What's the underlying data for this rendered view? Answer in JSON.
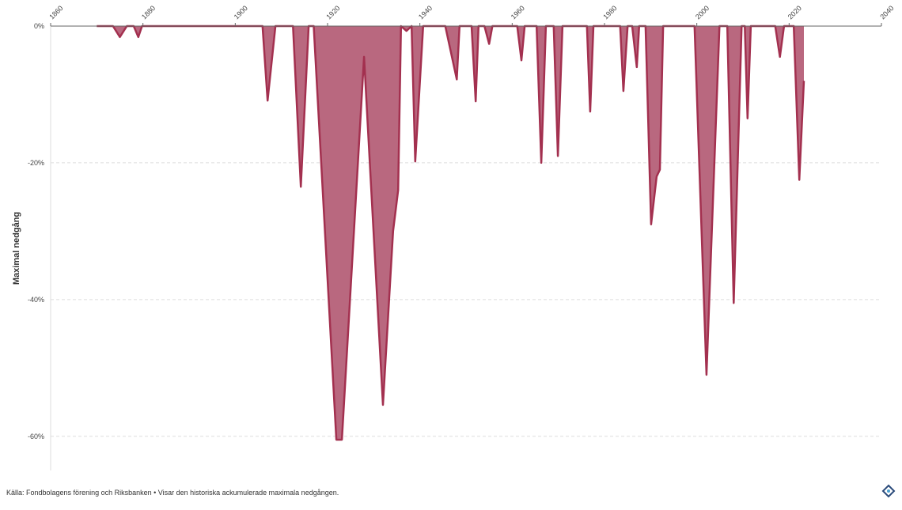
{
  "chart_data": {
    "type": "area",
    "y_label": "Maximal nedgång",
    "source": "Källa: Fondbolagens förening och Riksbanken • Visar den historiska ackumulerade maximala nedgången.",
    "x": [
      1870,
      1873.5,
      1875,
      1876.5,
      1878,
      1879,
      1879.8,
      1905.9,
      1907,
      1908.7,
      1912.5,
      1914.2,
      1915.9,
      1917,
      1921.9,
      1923.1,
      1927.9,
      1932,
      1934.2,
      1935.3,
      1935.9,
      1937.1,
      1938.2,
      1939,
      1940.7,
      1945.5,
      1948,
      1948.6,
      1951.2,
      1952.1,
      1952.7,
      1954,
      1955,
      1955.7,
      1961.1,
      1962,
      1962.7,
      1965.3,
      1966.3,
      1967.3,
      1969,
      1969.9,
      1970.9,
      1976.2,
      1976.9,
      1977.6,
      1983.4,
      1984.1,
      1985,
      1986,
      1987,
      1987.5,
      1988.9,
      1990.1,
      1991.3,
      1992,
      1992.7,
      1999.5,
      2002.1,
      2004.9,
      2006.6,
      2008,
      2009.7,
      2010.4,
      2011,
      2011.7,
      2017,
      2018,
      2018.9,
      2021,
      2022.2,
      2023.2
    ],
    "y": [
      0,
      0,
      -1.6,
      0,
      0,
      -1.6,
      0,
      0,
      -10.9,
      0,
      0,
      -23.5,
      0,
      0,
      -60.5,
      -60.5,
      -4.5,
      -55.4,
      -30,
      -24,
      0,
      -0.7,
      0,
      -19.8,
      0,
      0,
      -7.8,
      0,
      0,
      -11,
      0,
      0,
      -2.6,
      0,
      0,
      -5,
      0,
      0,
      -20,
      0,
      0,
      -19,
      0,
      0,
      -12.5,
      0,
      0,
      -9.5,
      0,
      0,
      -6,
      0,
      0,
      -29,
      -22,
      -21,
      0,
      0,
      -51,
      0,
      0,
      -40.5,
      0,
      0,
      -13.5,
      0,
      0,
      -4.5,
      0,
      0,
      -22.5,
      -8
    ],
    "color": "#a3304f",
    "fill": "#b9687f",
    "xlim": [
      1860,
      2040
    ],
    "xticks": [
      1860,
      1880,
      1900,
      1920,
      1940,
      1960,
      1980,
      2000,
      2020,
      2040
    ],
    "ylim": [
      0,
      -65
    ],
    "yticks": [
      {
        "value": 0,
        "label": "0%"
      },
      {
        "value": -20,
        "label": "-20%"
      },
      {
        "value": -40,
        "label": "-40%"
      },
      {
        "value": -60,
        "label": "-60%"
      }
    ],
    "grid": true
  }
}
